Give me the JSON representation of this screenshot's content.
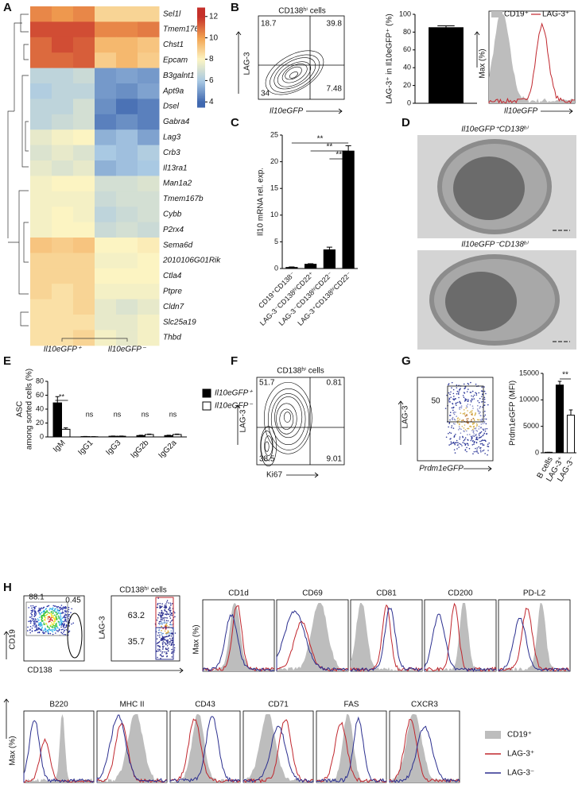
{
  "A": {
    "letter": "A",
    "type": "heatmap",
    "rows": [
      "Sel1l",
      "Tmem176a",
      "Chst1",
      "Epcam",
      "B3galnt1",
      "Apt9a",
      "Dsel",
      "Gabra4",
      "Lag3",
      "Crb3",
      "Il13ra1",
      "Man1a2",
      "Tmem167b",
      "Cybb",
      "P2rx4",
      "Sema6d",
      "2010106G01Rik",
      "Ctla4",
      "Ptpre",
      "Cldn7",
      "Slc25a19",
      "Thbd"
    ],
    "groups": [
      "Il10eGFP⁺",
      "Il10eGFP⁻"
    ],
    "values": [
      [
        10.5,
        10.2,
        10.5,
        8.8,
        8.8,
        8.8
      ],
      [
        11.5,
        11.5,
        11.5,
        10.5,
        10.5,
        10.7
      ],
      [
        11,
        11.5,
        11.2,
        9.5,
        9.5,
        9.2
      ],
      [
        11,
        11,
        11.2,
        9,
        9.5,
        9
      ],
      [
        6.5,
        6.5,
        6.8,
        5,
        5.2,
        5
      ],
      [
        6.2,
        6.5,
        6.5,
        5,
        4.8,
        5.2
      ],
      [
        6.5,
        6.5,
        7,
        4.8,
        4.2,
        4.5
      ],
      [
        6.5,
        6.8,
        7,
        4.5,
        4.8,
        4.5
      ],
      [
        7.5,
        7.8,
        8,
        5.5,
        5.8,
        5.2
      ],
      [
        7.2,
        7.5,
        7.2,
        6,
        5.8,
        6.2
      ],
      [
        7.5,
        7.2,
        7.5,
        5.5,
        5.8,
        6
      ],
      [
        7.8,
        8,
        8,
        7,
        7,
        7.2
      ],
      [
        7.8,
        7.8,
        7.8,
        6.8,
        7,
        7
      ],
      [
        7.8,
        8,
        7.8,
        6.5,
        6.8,
        7
      ],
      [
        7.8,
        8,
        8,
        6.8,
        7,
        6.8
      ],
      [
        9.2,
        9,
        9.2,
        8,
        8,
        8.2
      ],
      [
        8.8,
        8.8,
        8.8,
        7.8,
        7.8,
        8
      ],
      [
        8.8,
        8.8,
        8.8,
        8,
        8,
        8
      ],
      [
        8.8,
        8.5,
        8.8,
        7.8,
        7.8,
        7.8
      ],
      [
        8.5,
        8.5,
        8.8,
        7.5,
        7.2,
        7.5
      ],
      [
        8.5,
        8.5,
        8.5,
        7.5,
        7.5,
        7.8
      ],
      [
        8.5,
        8.5,
        8.8,
        7.8,
        7.5,
        7.8
      ]
    ],
    "zlim": [
      3.5,
      12.8
    ],
    "zticks": [
      4,
      6,
      8,
      10,
      12
    ],
    "colors": [
      "#4068b0",
      "#a9c9e3",
      "#fcf4c2",
      "#f3a452",
      "#c5302a"
    ]
  },
  "B": {
    "letter": "B",
    "flow": {
      "title": "CD138ʰⁱ cells",
      "ylabel": "LAG-3",
      "xlabel": "Il10eGFP",
      "quadrants": [
        18.7,
        39.8,
        34,
        7.48
      ]
    },
    "bar": {
      "type": "bar",
      "ylabel": "LAG-3⁺ in Il10eGFP⁺ (%)",
      "values": [
        85
      ],
      "errors": [
        2
      ],
      "color": "#000000",
      "ylim": [
        0,
        100
      ],
      "yticks": [
        0,
        20,
        40,
        60,
        80,
        100
      ]
    },
    "histogram": {
      "ylabel": "Max (%)",
      "xlabel": "Il10eGFP",
      "series": [
        {
          "name": "CD19⁺",
          "color": "#bdbdbd"
        },
        {
          "name": "LAG-3⁺",
          "color": "#c0262d"
        }
      ]
    }
  },
  "C": {
    "letter": "C",
    "type": "bar",
    "ylabel": "Il10 mRNA rel. exp.",
    "categories": [
      "CD19⁺CD138⁻",
      "LAG-3⁻CD138ʰⁱCD22⁺",
      "LAG-3⁻CD138ʰⁱCD22⁻",
      "LAG-3⁺CD138ʰⁱCD22⁻"
    ],
    "values": [
      0.2,
      0.8,
      3.5,
      22
    ],
    "errors": [
      0.1,
      0.1,
      0.5,
      1
    ],
    "color": "#000000",
    "ylim": [
      0,
      25
    ],
    "yticks": [
      0,
      5,
      10,
      15,
      20,
      25
    ],
    "significance": [
      "**",
      "**",
      "**"
    ]
  },
  "D": {
    "letter": "D",
    "images": [
      "Il10eGFP⁺CD138ʰⁱ",
      "Il10eGFP⁻CD138ʰⁱ"
    ]
  },
  "E": {
    "letter": "E",
    "type": "bar",
    "ylabel": [
      "ASC",
      "among sorted cells (%)"
    ],
    "categories": [
      "IgM",
      "IgG1",
      "IgG3",
      "IgG2b",
      "IgG2a"
    ],
    "series": [
      {
        "name": "Il10eGFP⁺",
        "color": "#000000",
        "values": [
          49,
          0.5,
          1,
          2,
          2
        ],
        "errors": [
          9,
          0.2,
          0.3,
          0.5,
          0.5
        ]
      },
      {
        "name": "Il10eGFP⁻",
        "color": "#ffffff",
        "values": [
          11,
          0.3,
          1,
          3.5,
          3.5
        ],
        "errors": [
          2,
          0.1,
          0.3,
          0.6,
          0.6
        ]
      }
    ],
    "ylim": [
      0,
      80
    ],
    "yticks": [
      0,
      20,
      40,
      60,
      80
    ],
    "significance": [
      "**",
      "ns",
      "ns",
      "ns",
      "ns"
    ]
  },
  "F": {
    "letter": "F",
    "flow": {
      "title": "CD138ʰⁱ cells",
      "ylabel": "LAG-3",
      "xlabel": "Ki67",
      "quadrants": [
        51.7,
        0.81,
        38.5,
        9.01
      ]
    }
  },
  "G": {
    "letter": "G",
    "flow": {
      "ylabel": "LAG-3",
      "xlabel": "Prdm1eGFP",
      "gate": 50
    },
    "bar": {
      "type": "bar",
      "ylabel": "Prdm1eGFP (MFI)",
      "categories": [
        "B cells",
        "LAG-3⁺",
        "LAG-3⁻"
      ],
      "values": [
        100,
        12800,
        7100
      ],
      "errors": [
        0,
        700,
        1000
      ],
      "colors": [
        "#000000",
        "#000000",
        "#ffffff"
      ],
      "ylim": [
        0,
        15000
      ],
      "yticks": [
        0,
        5000,
        10000,
        15000
      ],
      "significance": [
        "**"
      ]
    }
  },
  "H": {
    "letter": "H",
    "dot1": {
      "xlabel": "CD138",
      "ylabel": "CD19",
      "gates": [
        88.1,
        0.45
      ]
    },
    "dot2": {
      "title": "CD138ʰⁱ cells",
      "ylabel": "LAG-3",
      "gates": [
        63.2,
        35.7
      ]
    },
    "ylabel": "Max (%)",
    "histograms": [
      "CD1d",
      "CD69",
      "CD81",
      "CD200",
      "PD-L2",
      "B220",
      "MHC II",
      "CD43",
      "CD71",
      "FAS",
      "CXCR3"
    ],
    "legend": [
      {
        "name": "CD19⁺",
        "color": "#bdbdbd"
      },
      {
        "name": "LAG-3⁺",
        "color": "#c0262d"
      },
      {
        "name": "LAG-3⁻",
        "color": "#2b2f8f"
      }
    ]
  }
}
